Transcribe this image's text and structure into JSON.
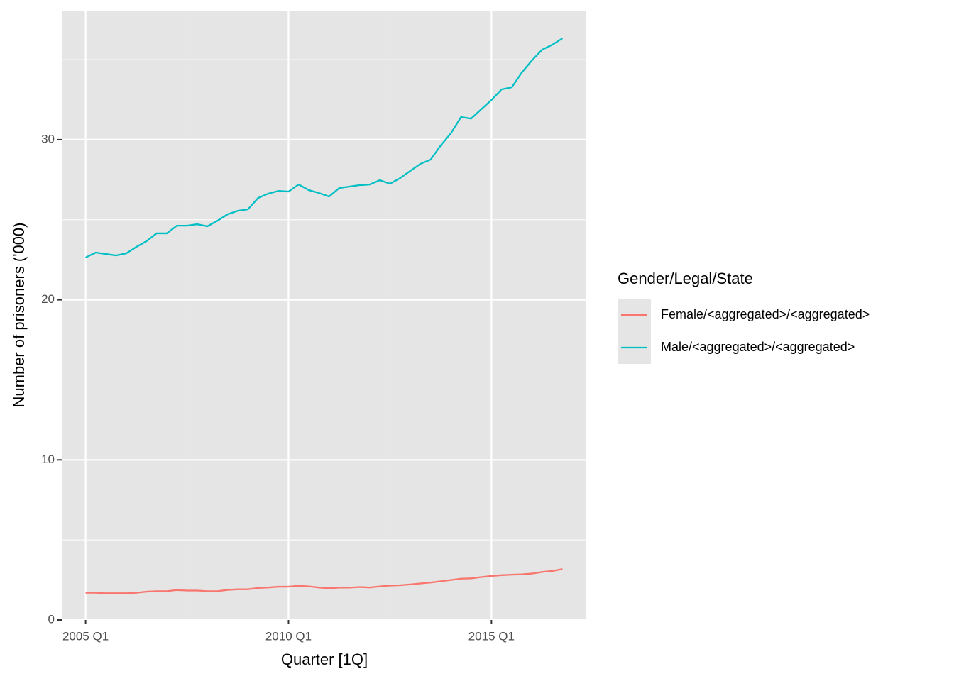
{
  "chart_data": {
    "type": "line",
    "x_label": "Quarter [1Q]",
    "y_label": "Number of prisoners ('000)",
    "legend_title": "Gender/Legal/State",
    "categories": [
      "2005 Q1",
      null,
      null,
      null,
      null,
      null,
      null,
      null,
      null,
      null,
      null,
      null,
      null,
      null,
      null,
      null,
      null,
      null,
      null,
      null,
      "2010 Q1",
      null,
      null,
      null,
      null,
      null,
      null,
      null,
      null,
      null,
      null,
      null,
      null,
      null,
      null,
      null,
      null,
      null,
      null,
      null,
      "2015 Q1",
      null,
      null,
      null,
      null,
      null,
      null,
      null
    ],
    "series": [
      {
        "name": "Female/<aggregated>/<aggregated>",
        "color": "#f8766d",
        "values": [
          1.7,
          1.7,
          1.67,
          1.67,
          1.67,
          1.7,
          1.77,
          1.8,
          1.8,
          1.87,
          1.84,
          1.84,
          1.8,
          1.8,
          1.88,
          1.92,
          1.92,
          2.0,
          2.03,
          2.08,
          2.08,
          2.14,
          2.1,
          2.03,
          1.98,
          2.02,
          2.02,
          2.06,
          2.03,
          2.1,
          2.15,
          2.17,
          2.22,
          2.28,
          2.34,
          2.42,
          2.5,
          2.58,
          2.6,
          2.68,
          2.75,
          2.8,
          2.83,
          2.85,
          2.9,
          3.0,
          3.06,
          3.18
        ]
      },
      {
        "name": "Male/<aggregated>/<aggregated>",
        "color": "#00bfc4",
        "values": [
          22.64,
          22.95,
          22.86,
          22.77,
          22.9,
          23.3,
          23.66,
          24.15,
          24.15,
          24.63,
          24.63,
          24.72,
          24.59,
          24.94,
          25.34,
          25.56,
          25.65,
          26.36,
          26.63,
          26.8,
          26.76,
          27.2,
          26.85,
          26.67,
          26.45,
          26.98,
          27.07,
          27.16,
          27.2,
          27.47,
          27.25,
          27.6,
          28.05,
          28.49,
          28.75,
          29.64,
          30.4,
          31.41,
          31.32,
          31.9,
          32.48,
          33.14,
          33.27,
          34.2,
          34.96,
          35.62,
          35.93,
          36.33
        ]
      }
    ],
    "ylim": [
      0,
      38.06
    ],
    "yticks": [
      0,
      10,
      20,
      30
    ],
    "grid": true
  }
}
